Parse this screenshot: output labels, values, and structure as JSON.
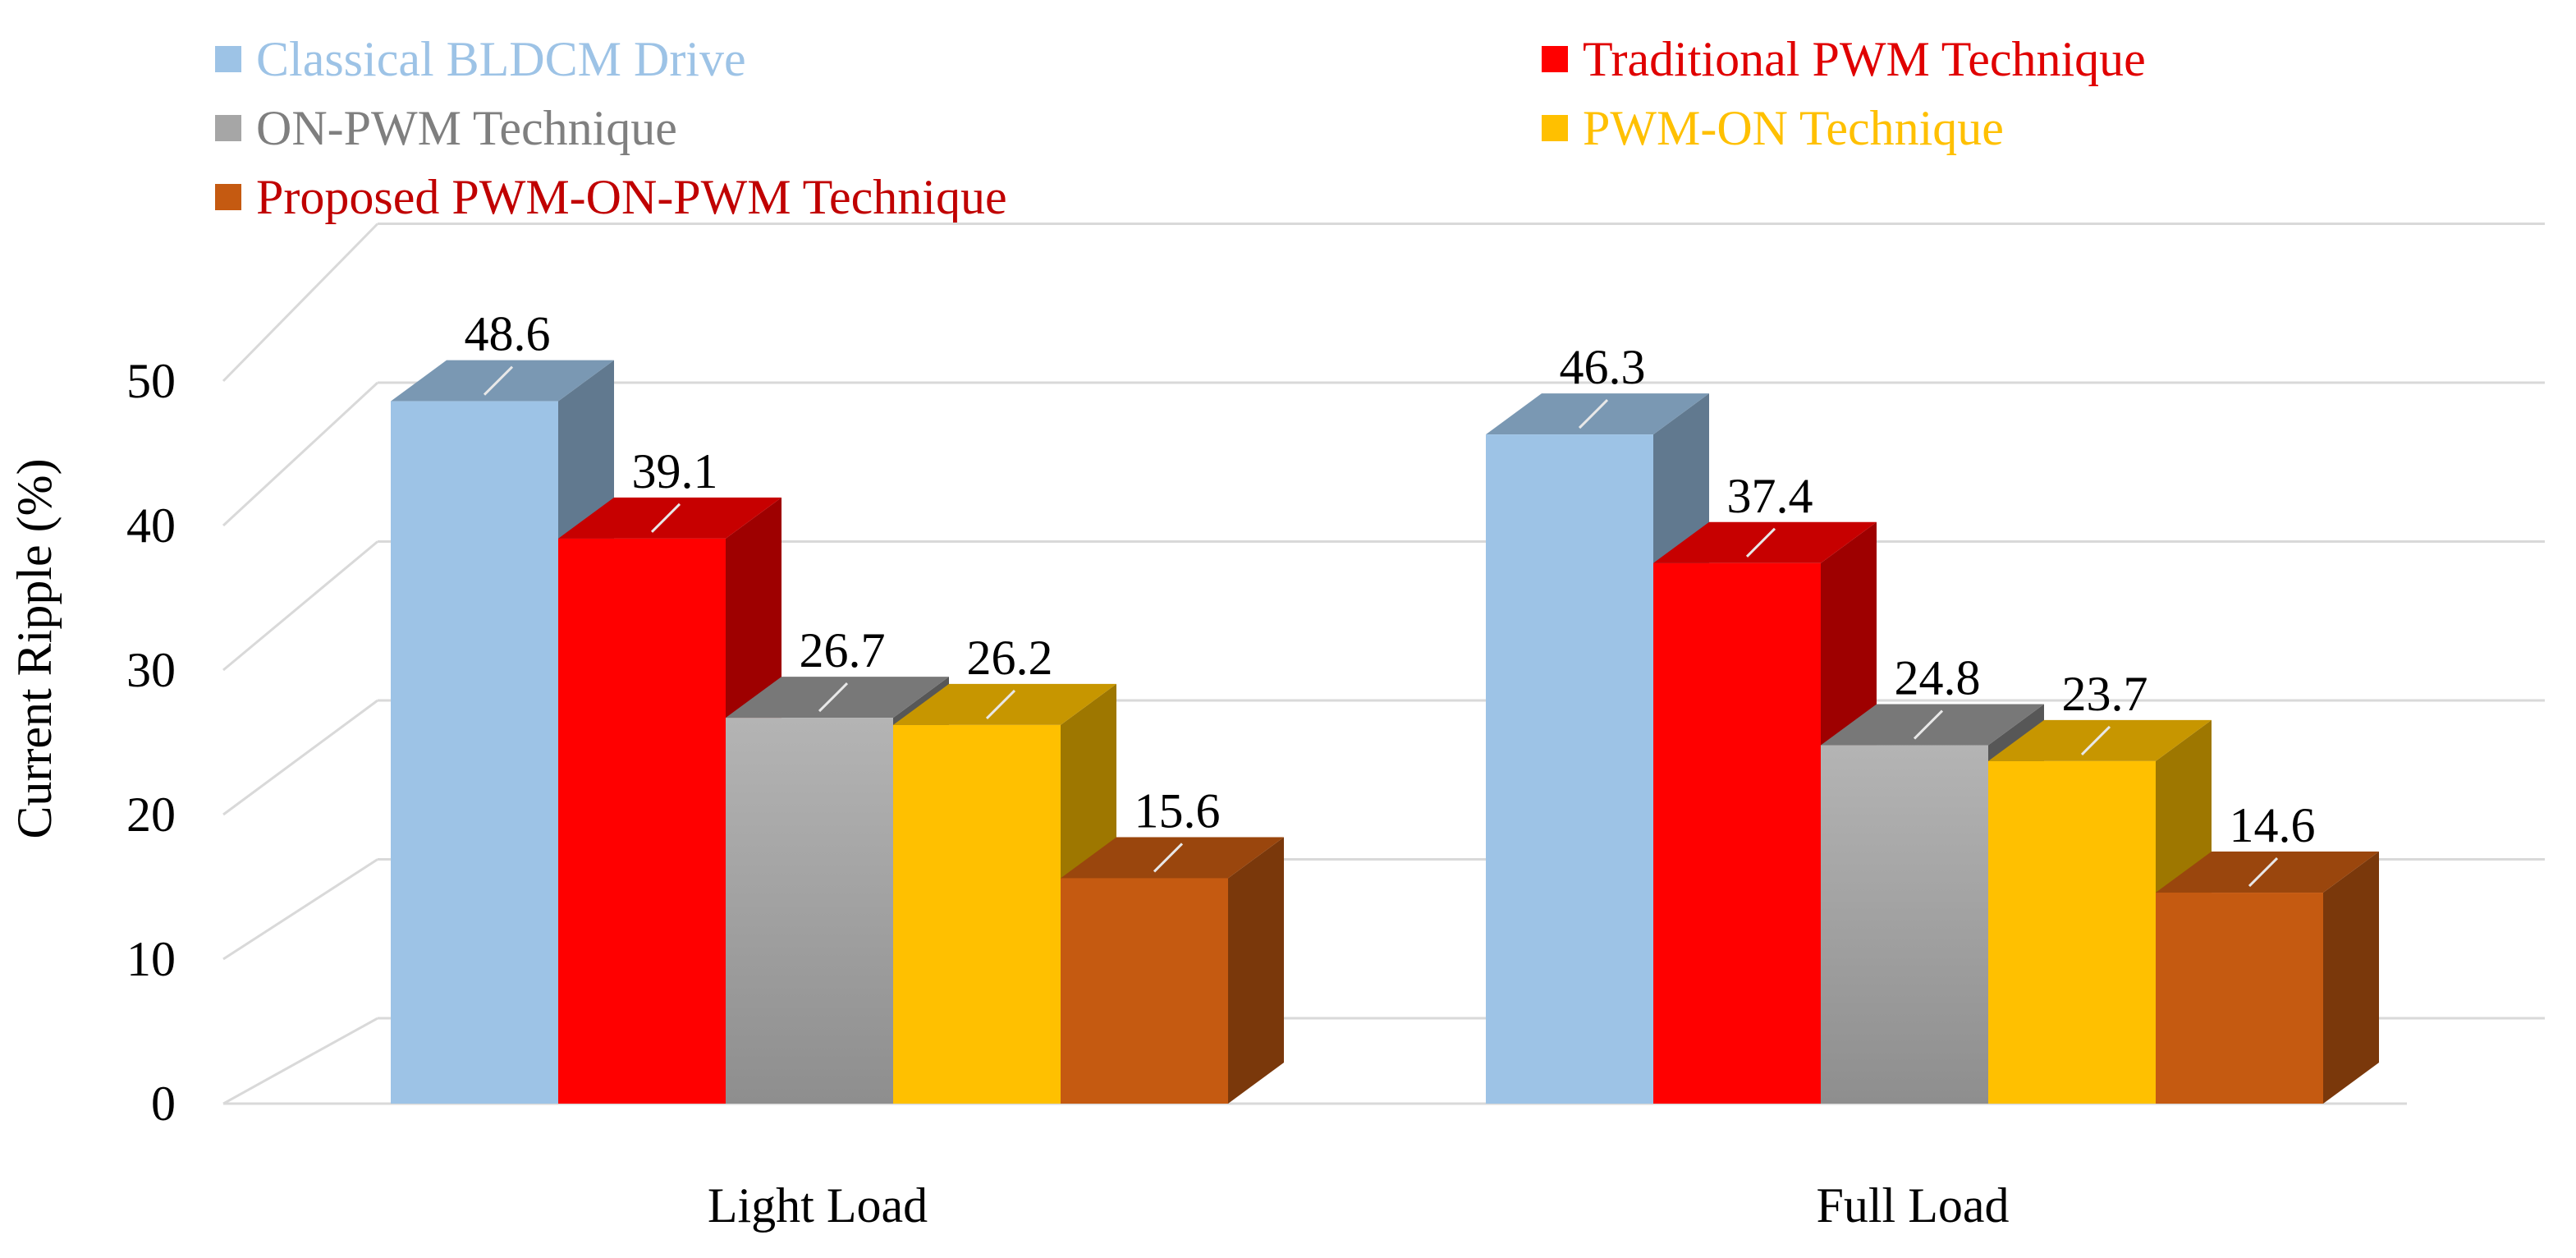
{
  "chart_data": {
    "type": "bar",
    "style": "3d-clustered",
    "title": "",
    "xlabel": "",
    "ylabel": "Current Ripple (%)",
    "ylim": [
      0,
      50
    ],
    "yticks": [
      "0",
      "10",
      "20",
      "30",
      "40",
      "50"
    ],
    "grid": true,
    "legend_position": "top",
    "categories": [
      "Light Load",
      "Full Load"
    ],
    "series": [
      {
        "name": "Classical BLDCM Drive",
        "values": [
          48.6,
          46.3
        ],
        "labels": [
          "48.6",
          "46.3"
        ],
        "color": "#9DC3E6",
        "text_color": "#9DC3E6"
      },
      {
        "name": "Traditional PWM Technique",
        "values": [
          39.1,
          37.4
        ],
        "labels": [
          "39.1",
          "37.4"
        ],
        "color": "#FF0000",
        "text_color": "#E00000"
      },
      {
        "name": "ON-PWM Technique",
        "values": [
          26.7,
          24.8
        ],
        "labels": [
          "26.7",
          "24.8"
        ],
        "color": "#A6A6A6",
        "text_color": "#7F7F7F"
      },
      {
        "name": "PWM-ON Technique",
        "values": [
          26.2,
          23.7
        ],
        "labels": [
          "26.2",
          "23.7"
        ],
        "color": "#FFC000",
        "text_color": "#FFC000"
      },
      {
        "name": "Proposed PWM-ON-PWM Technique",
        "values": [
          15.6,
          14.6
        ],
        "labels": [
          "15.6",
          "14.6"
        ],
        "color": "#C55A11",
        "text_color": "#C00000"
      }
    ]
  }
}
